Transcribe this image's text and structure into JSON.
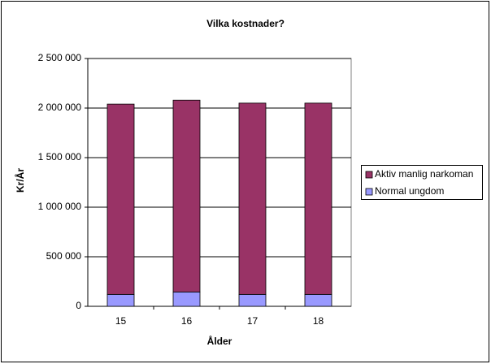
{
  "chart_data": {
    "type": "stacked-bar",
    "title": "Vilka kostnader?",
    "x_label": "Ålder",
    "y_label": "Kr/År",
    "categories": [
      "15",
      "16",
      "17",
      "18"
    ],
    "series": [
      {
        "name": "Aktiv manlig narkoman",
        "color": "#993366",
        "values": [
          1920000,
          1935000,
          1930000,
          1930000
        ]
      },
      {
        "name": "Normal ungdom",
        "color": "#9999ff",
        "values": [
          120000,
          145000,
          120000,
          120000
        ]
      }
    ],
    "ylim": [
      0,
      2500000
    ],
    "yticks": [
      0,
      {
        "value": 500000,
        "label": "500 000"
      },
      {
        "value": 1000000,
        "label": "1 000 000"
      },
      {
        "value": 1500000,
        "label": "1 500 000"
      },
      {
        "value": 2000000,
        "label": "2 000 000"
      },
      {
        "value": 2500000,
        "label": "2 500 000"
      }
    ],
    "grid": true,
    "legend": "right"
  }
}
